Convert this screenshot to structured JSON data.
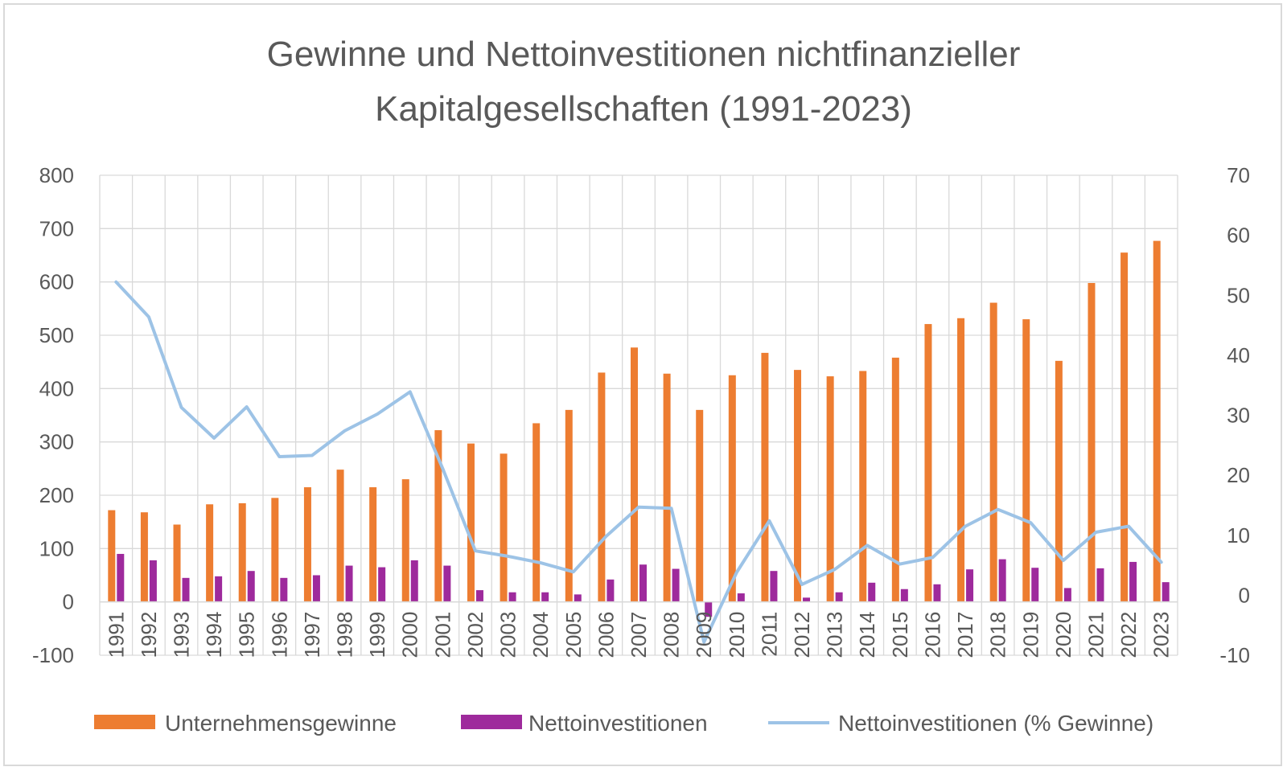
{
  "chart_data": {
    "type": "bar",
    "title_line1": "Gewinne und Nettoinvestitionen nichtfinanzieller",
    "title_line2": "Kapitalgesellschaften (1991-2023)",
    "categories": [
      "1991",
      "1992",
      "1993",
      "1994",
      "1995",
      "1996",
      "1997",
      "1998",
      "1999",
      "2000",
      "2001",
      "2002",
      "2003",
      "2004",
      "2005",
      "2006",
      "2007",
      "2008",
      "2009",
      "2010",
      "2011",
      "2012",
      "2013",
      "2014",
      "2015",
      "2016",
      "2017",
      "2018",
      "2019",
      "2020",
      "2021",
      "2022",
      "2023"
    ],
    "y_left": {
      "min": -100,
      "max": 800,
      "step": 100
    },
    "y_right": {
      "min": -10,
      "max": 70,
      "step": 10
    },
    "grid": true,
    "legend_position": "bottom",
    "series": [
      {
        "name": "Unternehmensgewinne",
        "kind": "bar",
        "axis": "left",
        "color": "#ED7D31",
        "values": [
          172,
          168,
          145,
          183,
          185,
          195,
          215,
          248,
          215,
          230,
          322,
          297,
          278,
          335,
          360,
          430,
          477,
          428,
          360,
          425,
          467,
          435,
          423,
          433,
          458,
          521,
          532,
          561,
          530,
          452,
          598,
          655,
          677
        ]
      },
      {
        "name": "Nettoinvestitionen",
        "kind": "bar",
        "axis": "left",
        "color": "#9E2A9C",
        "values": [
          90,
          78,
          45,
          48,
          58,
          45,
          50,
          68,
          65,
          78,
          68,
          22,
          18,
          18,
          14,
          42,
          70,
          62,
          -28,
          16,
          58,
          8,
          18,
          36,
          24,
          33,
          61,
          80,
          64,
          26,
          63,
          75,
          37
        ]
      },
      {
        "name": "Nettoinvestitionen (% Gewinne)",
        "kind": "line",
        "axis": "right",
        "color": "#9DC3E6",
        "values": [
          52.2,
          46.4,
          31.3,
          26.2,
          31.4,
          23.1,
          23.3,
          27.4,
          30.2,
          33.9,
          21.1,
          7.4,
          6.5,
          5.4,
          3.9,
          9.8,
          14.7,
          14.5,
          -7.8,
          3.8,
          12.4,
          1.8,
          4.3,
          8.3,
          5.2,
          6.3,
          11.5,
          14.3,
          12.1,
          5.8,
          10.5,
          11.5,
          5.5
        ]
      }
    ]
  }
}
